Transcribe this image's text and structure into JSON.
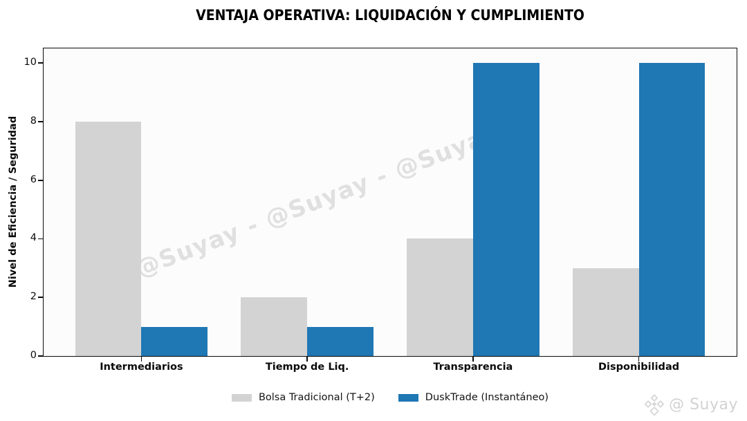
{
  "title": "VENTAJA OPERATIVA: LIQUIDACIÓN Y CUMPLIMIENTO",
  "watermark": {
    "text": "@Suyay - @Suyay - @Suyay"
  },
  "footer_logo": {
    "icon": "diamond-cluster-icon",
    "text": "@ Suyay"
  },
  "chart_data": {
    "type": "bar",
    "title": "VENTAJA OPERATIVA: LIQUIDACIÓN Y CUMPLIMIENTO",
    "categories": [
      "Intermediarios",
      "Tiempo de Liq.",
      "Transparencia",
      "Disponibilidad"
    ],
    "series": [
      {
        "name": "Bolsa Tradicional (T+2)",
        "color": "#d3d3d3",
        "values": [
          8,
          2,
          4,
          3
        ]
      },
      {
        "name": "DuskTrade (Instantáneo)",
        "color": "#1f77b4",
        "values": [
          1,
          1,
          10,
          10
        ]
      }
    ],
    "xlabel": "",
    "ylabel": "Nivel de Eficiencia / Seguridad",
    "ylim": [
      0,
      10.5
    ],
    "yticks": [
      0,
      2,
      4,
      6,
      8,
      10
    ],
    "grid": false,
    "legend_position": "bottom-center",
    "bar_width_units": 0.4
  }
}
